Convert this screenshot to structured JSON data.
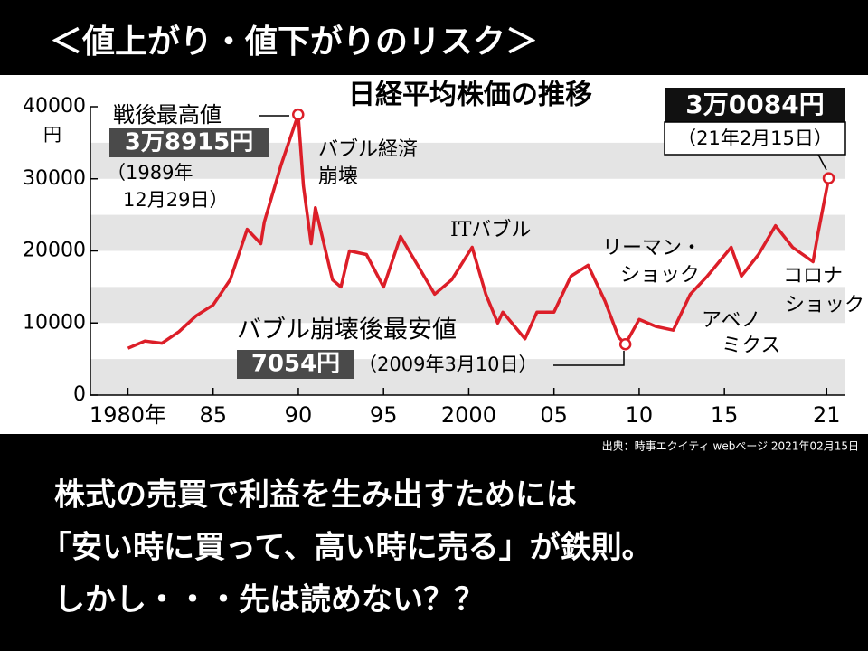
{
  "title": "＜値上がり・値下がりのリスク＞",
  "chart_data": {
    "type": "line",
    "title": "日経平均株価の推移",
    "y_unit": "円",
    "color": "#dc1e28",
    "x": [
      1980,
      1981,
      1982,
      1983,
      1984,
      1985,
      1986,
      1987,
      1987.8,
      1988,
      1989,
      1989.99,
      1990.3,
      1990.75,
      1991,
      1992,
      1992.5,
      1993,
      1994,
      1995,
      1996,
      1997,
      1998,
      1999,
      2000.2,
      2001,
      2001.7,
      2002,
      2003.3,
      2004,
      2005,
      2006,
      2007,
      2008,
      2008.8,
      2009.19,
      2010,
      2011,
      2012,
      2013,
      2014,
      2015.4,
      2016,
      2017,
      2018,
      2019,
      2020.2,
      2020.5,
      2021.12
    ],
    "values": [
      6500,
      7500,
      7200,
      8800,
      11000,
      12500,
      16000,
      23000,
      21000,
      24000,
      32000,
      38915,
      29000,
      21000,
      26000,
      16000,
      15000,
      20000,
      19500,
      15000,
      22000,
      18000,
      14000,
      16000,
      20500,
      14000,
      10000,
      11500,
      7800,
      11500,
      11500,
      16500,
      18000,
      13000,
      8000,
      7054,
      10500,
      9500,
      9000,
      14000,
      16500,
      20500,
      16500,
      19500,
      23500,
      20500,
      18500,
      22500,
      30084
    ],
    "xlim": [
      1977.8,
      2022.1
    ],
    "ylim": [
      0,
      40000
    ],
    "yticks": [
      0,
      10000,
      20000,
      30000,
      40000
    ],
    "xticks": [
      {
        "value": 1980,
        "label": "1980年"
      },
      {
        "value": 1985,
        "label": "85"
      },
      {
        "value": 1990,
        "label": "90"
      },
      {
        "value": 1995,
        "label": "95"
      },
      2000,
      {
        "value": 2005,
        "label": "05"
      },
      {
        "value": 2010,
        "label": "10"
      },
      {
        "value": 2015,
        "label": "15"
      },
      {
        "value": 2021,
        "label": "21"
      }
    ],
    "highlights": [
      {
        "text": "戦後最高値",
        "value": 38915,
        "value_label": "3万8915円",
        "date_lines": [
          "（1989年",
          "12月29日）"
        ]
      },
      {
        "text": "バブル崩壊後最安値",
        "value": 7054,
        "value_label": "7054円",
        "date": "（2009年3月10日）"
      },
      {
        "value": 30084,
        "value_label": "3万0084円",
        "date": "（21年2月15日）"
      }
    ],
    "events": [
      [
        "バブル経済",
        "崩壊"
      ],
      [
        "ITバブル"
      ],
      [
        "リーマン・",
        "ショック"
      ],
      [
        "アベノ",
        "ミクス"
      ],
      [
        "コロナ",
        "ショック"
      ]
    ],
    "source": "出典：時事エクイティ webページ 2021年02月15日"
  },
  "body_lines": [
    "株式の売買で利益を生み出すためには",
    "「安い時に買って、高い時に売る」が鉄則。",
    "しかし・・・先は読めない？？"
  ]
}
